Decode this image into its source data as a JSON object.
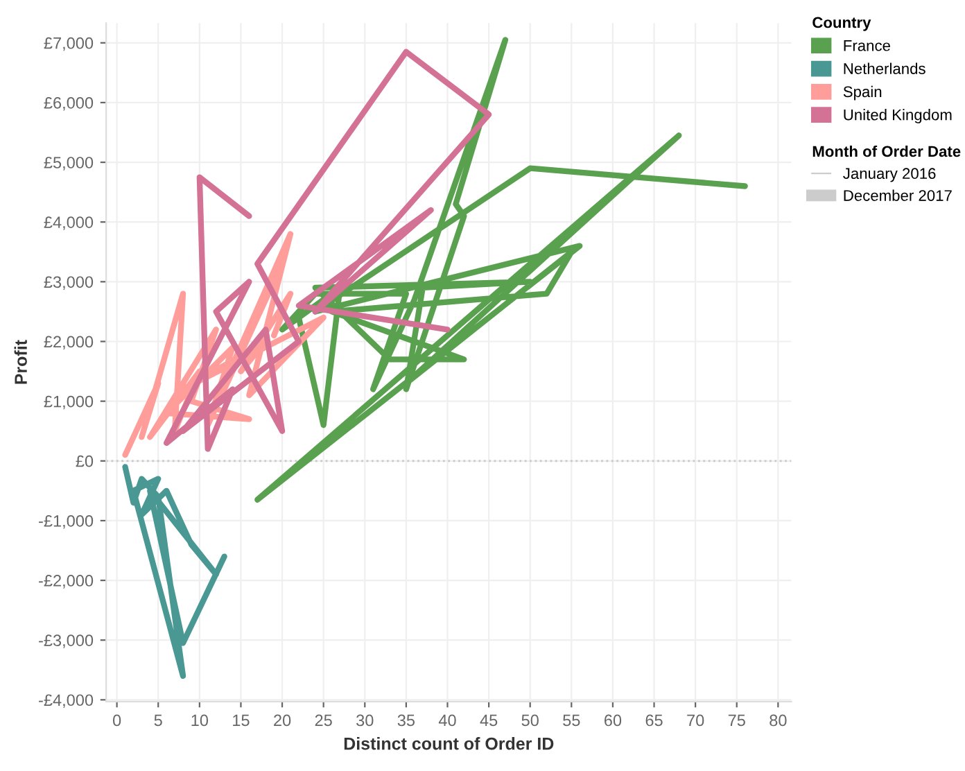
{
  "chart_data": {
    "type": "line",
    "xlabel": "Distinct count of Order ID",
    "ylabel": "Profit",
    "legend_title": "Country",
    "xlim": [
      -1.3,
      81.6
    ],
    "ylim": [
      -4030,
      7330
    ],
    "xticks": [
      0,
      5,
      10,
      15,
      20,
      25,
      30,
      35,
      40,
      45,
      50,
      55,
      60,
      65,
      70,
      75,
      80
    ],
    "yticks": [
      {
        "value": -4000,
        "label": "-£4,000"
      },
      {
        "value": -3000,
        "label": "-£3,000"
      },
      {
        "value": -2000,
        "label": "-£2,000"
      },
      {
        "value": -1000,
        "label": "-£1,000"
      },
      {
        "value": 0,
        "label": "£0"
      },
      {
        "value": 1000,
        "label": "£1,000"
      },
      {
        "value": 2000,
        "label": "£2,000"
      },
      {
        "value": 3000,
        "label": "£3,000"
      },
      {
        "value": 4000,
        "label": "£4,000"
      },
      {
        "value": 5000,
        "label": "£5,000"
      },
      {
        "value": 6000,
        "label": "£6,000"
      },
      {
        "value": 7000,
        "label": "£7,000"
      }
    ],
    "grid": true,
    "legend": "top right",
    "line_style": "solid",
    "ref_lines": [
      {
        "axis": "y",
        "value": 0,
        "label": null,
        "color": "#c8c8c8",
        "line_style": "dotted"
      }
    ],
    "annotations": [
      "Month of Order Date",
      "January 2016",
      "December 2017"
    ],
    "series": [
      {
        "name": "France",
        "color": "#59a14f",
        "x": [
          22,
          25,
          27,
          20,
          24,
          35,
          31,
          36,
          47,
          41,
          42,
          35,
          37,
          50,
          24,
          33,
          42,
          26,
          52,
          55,
          35,
          68,
          17,
          56,
          24,
          50,
          76
        ],
        "values": [
          2400,
          600,
          2900,
          2200,
          2800,
          2800,
          1200,
          2700,
          7050,
          4300,
          4100,
          1200,
          2900,
          3000,
          2900,
          1700,
          1700,
          2500,
          2800,
          3500,
          1300,
          5450,
          -650,
          3600,
          2500,
          4900,
          4600
        ]
      },
      {
        "name": "Netherlands",
        "color": "#499894",
        "x": [
          1,
          2,
          3,
          5,
          8,
          2,
          5,
          3,
          6,
          9,
          12,
          4,
          8,
          13
        ],
        "values": [
          -100,
          -700,
          -300,
          -600,
          -3600,
          -500,
          -300,
          -900,
          -500,
          -1400,
          -1900,
          -500,
          -3050,
          -1600
        ]
      },
      {
        "name": "Spain",
        "color": "#ff9d9a",
        "x": [
          1,
          5,
          3,
          8,
          7,
          10,
          4,
          12,
          9,
          16,
          6,
          14,
          11,
          20,
          13,
          21,
          16,
          25,
          8,
          18,
          15,
          21,
          19
        ],
        "values": [
          100,
          1300,
          400,
          2800,
          500,
          1500,
          400,
          2200,
          1000,
          700,
          800,
          1900,
          600,
          3300,
          1300,
          3800,
          1100,
          2400,
          1200,
          2000,
          1500,
          2800,
          2100
        ]
      },
      {
        "name": "United Kingdom",
        "color": "#d37295",
        "x": [
          16,
          10,
          11,
          14,
          6,
          16,
          12,
          20,
          18,
          8,
          22,
          17,
          35,
          45,
          24,
          38,
          22,
          40
        ],
        "values": [
          4100,
          4750,
          200,
          1200,
          300,
          3000,
          2500,
          500,
          2200,
          500,
          2000,
          3300,
          6850,
          5800,
          2500,
          4200,
          2600,
          2200
        ]
      }
    ]
  }
}
